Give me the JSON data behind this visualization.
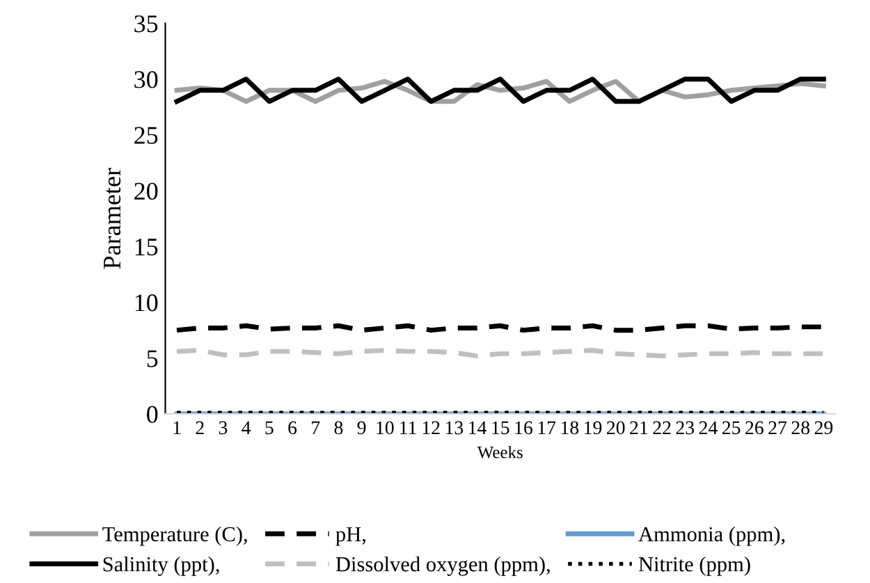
{
  "chart_data": {
    "type": "line",
    "xlabel": "Weeks",
    "ylabel": "Parameter",
    "categories": [
      "1",
      "2",
      "3",
      "4",
      "5",
      "6",
      "7",
      "8",
      "9",
      "10",
      "11",
      "12",
      "13",
      "14",
      "15",
      "16",
      "17",
      "18",
      "19",
      "20",
      "21",
      "22",
      "23",
      "24",
      "25",
      "26",
      "27",
      "28",
      "29"
    ],
    "ylim": [
      0,
      35
    ],
    "yticks": [
      0,
      5,
      10,
      15,
      20,
      25,
      30,
      35
    ],
    "grid": false,
    "legend": "bottom",
    "marker": "none",
    "series": [
      {
        "name": "Temperature (C),",
        "color": "#a0a0a0",
        "line_style": "solid",
        "values": [
          29,
          29.2,
          29,
          28,
          29,
          29,
          28,
          29,
          29.2,
          29.8,
          29,
          28,
          28,
          29.5,
          29,
          29.2,
          29.8,
          28,
          29,
          29.8,
          28,
          29,
          28.4,
          28.6,
          29,
          29.2,
          29.4,
          29.6,
          29.4
        ]
      },
      {
        "name": "Salinity (ppt),",
        "color": "#000000",
        "line_style": "solid",
        "values": [
          28,
          29,
          29,
          30,
          28,
          29,
          29,
          30,
          28,
          29,
          30,
          28,
          29,
          29,
          30,
          28,
          29,
          29,
          30,
          28,
          28,
          29,
          30,
          30,
          28,
          29,
          29,
          30,
          30
        ]
      },
      {
        "name": "pH,",
        "color": "#000000",
        "line_style": "dashed",
        "values": [
          7.5,
          7.7,
          7.7,
          7.9,
          7.6,
          7.7,
          7.7,
          7.9,
          7.5,
          7.7,
          7.9,
          7.5,
          7.7,
          7.7,
          7.9,
          7.5,
          7.7,
          7.7,
          7.9,
          7.5,
          7.5,
          7.7,
          7.9,
          7.9,
          7.6,
          7.7,
          7.7,
          7.8,
          7.8
        ]
      },
      {
        "name": "Dissolved oxygen (ppm),",
        "color": "#c0c0c0",
        "line_style": "dashed",
        "values": [
          5.6,
          5.7,
          5.3,
          5.3,
          5.6,
          5.6,
          5.5,
          5.4,
          5.6,
          5.7,
          5.6,
          5.6,
          5.5,
          5.2,
          5.4,
          5.4,
          5.5,
          5.6,
          5.7,
          5.4,
          5.3,
          5.2,
          5.3,
          5.4,
          5.4,
          5.5,
          5.4,
          5.4,
          5.4
        ]
      },
      {
        "name": "Ammonia (ppm),",
        "color": "#5b9bd5",
        "line_style": "solid",
        "values": [
          0,
          0,
          0,
          0,
          0,
          0,
          0,
          0,
          0,
          0,
          0,
          0,
          0,
          0,
          0,
          0,
          0,
          0,
          0,
          0,
          0,
          0,
          0,
          0,
          0,
          0,
          0,
          0,
          0
        ]
      },
      {
        "name": "Nitrite (ppm)",
        "color": "#000000",
        "line_style": "dotted",
        "values": [
          0.1,
          0.1,
          0.1,
          0.1,
          0.1,
          0.1,
          0.1,
          0.1,
          0.1,
          0.1,
          0.1,
          0.1,
          0.1,
          0.1,
          0.1,
          0.1,
          0.1,
          0.1,
          0.1,
          0.1,
          0.1,
          0.1,
          0.1,
          0.1,
          0.1,
          0.1,
          0.1,
          0.1,
          0.1
        ]
      }
    ]
  }
}
